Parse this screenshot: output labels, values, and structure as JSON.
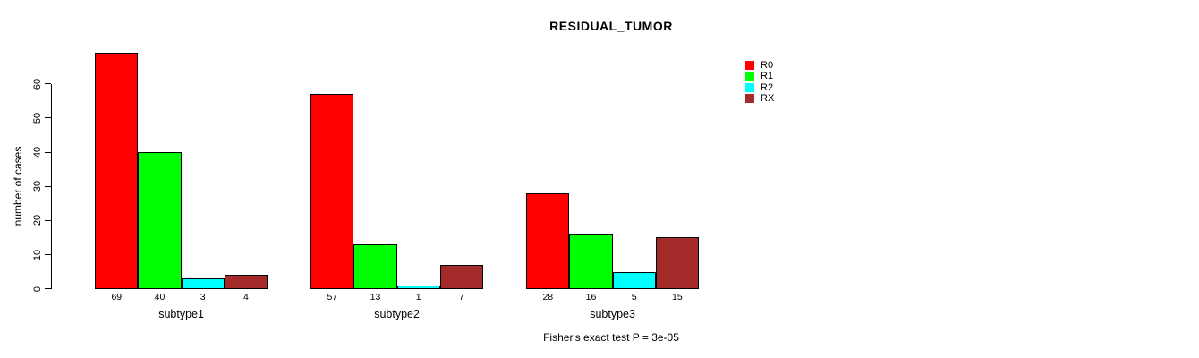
{
  "chart_data": {
    "type": "bar",
    "title": "RESIDUAL_TUMOR",
    "ylabel": "number of cases",
    "xlabel": "",
    "categories": [
      "subtype1",
      "subtype2",
      "subtype3"
    ],
    "series": [
      {
        "name": "R0",
        "color": "#FF0000",
        "values": [
          69,
          57,
          28
        ]
      },
      {
        "name": "R1",
        "color": "#00FF00",
        "values": [
          40,
          13,
          16
        ]
      },
      {
        "name": "R2",
        "color": "#00FFFF",
        "values": [
          3,
          1,
          5
        ]
      },
      {
        "name": "RX",
        "color": "#A52A2A",
        "values": [
          4,
          7,
          15
        ]
      }
    ],
    "ylim": [
      0,
      60
    ],
    "yticks": [
      0,
      10,
      20,
      30,
      40,
      50,
      60
    ],
    "bar_labels": true,
    "grid": false,
    "legend_position": "top-right",
    "annotation": "Fisher's exact test P = 3e-05",
    "text_color": "#000000",
    "background_color": "#FFFFFF"
  }
}
